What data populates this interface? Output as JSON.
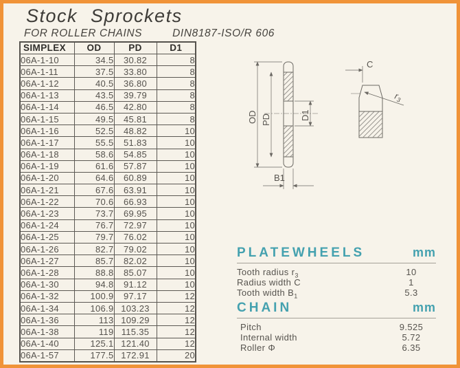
{
  "page": {
    "title": "Stock Sprockets",
    "subtitle_chains": "FOR ROLLER CHAINS",
    "subtitle_standard": "DIN8187-ISO/R 606"
  },
  "table": {
    "headers": [
      "SIMPLEX",
      "OD",
      "PD",
      "D1"
    ],
    "rows": [
      [
        "06A-1-10",
        "34.5",
        "30.82",
        "8"
      ],
      [
        "06A-1-11",
        "37.5",
        "33.80",
        "8"
      ],
      [
        "06A-1-12",
        "40.5",
        "36.80",
        "8"
      ],
      [
        "06A-1-13",
        "43.5",
        "39.79",
        "8"
      ],
      [
        "06A-1-14",
        "46.5",
        "42.80",
        "8"
      ],
      [
        "06A-1-15",
        "49.5",
        "45.81",
        "8"
      ],
      [
        "06A-1-16",
        "52.5",
        "48.82",
        "10"
      ],
      [
        "06A-1-17",
        "55.5",
        "51.83",
        "10"
      ],
      [
        "06A-1-18",
        "58.6",
        "54.85",
        "10"
      ],
      [
        "06A-1-19",
        "61.6",
        "57.87",
        "10"
      ],
      [
        "06A-1-20",
        "64.6",
        "60.89",
        "10"
      ],
      [
        "06A-1-21",
        "67.6",
        "63.91",
        "10"
      ],
      [
        "06A-1-22",
        "70.6",
        "66.93",
        "10"
      ],
      [
        "06A-1-23",
        "73.7",
        "69.95",
        "10"
      ],
      [
        "06A-1-24",
        "76.7",
        "72.97",
        "10"
      ],
      [
        "06A-1-25",
        "79.7",
        "76.02",
        "10"
      ],
      [
        "06A-1-26",
        "82.7",
        "79.02",
        "10"
      ],
      [
        "06A-1-27",
        "85.7",
        "82.02",
        "10"
      ],
      [
        "06A-1-28",
        "88.8",
        "85.07",
        "10"
      ],
      [
        "06A-1-30",
        "94.8",
        "91.12",
        "10"
      ],
      [
        "06A-1-32",
        "100.9",
        "97.17",
        "12"
      ],
      [
        "06A-1-34",
        "106.9",
        "103.23",
        "12"
      ],
      [
        "06A-1-36",
        "113",
        "109.29",
        "12"
      ],
      [
        "06A-1-38",
        "119",
        "115.35",
        "12"
      ],
      [
        "06A-1-40",
        "125.1",
        "121.40",
        "12"
      ],
      [
        "06A-1-57",
        "177.5",
        "172.91",
        "20"
      ]
    ]
  },
  "drawing": {
    "od": "OD",
    "pd": "PD",
    "d1": "D1",
    "b1": "B1",
    "c": "C",
    "r_main": "r",
    "r_sub": "3"
  },
  "platewheels": {
    "heading": "PLATEWHEELS",
    "unit": "mm",
    "rows": [
      {
        "label": "Tooth radius r",
        "sub": "3",
        "value": "10"
      },
      {
        "label": "Radius width C",
        "sub": "",
        "value": "1"
      },
      {
        "label": "Tooth width B",
        "sub": "1",
        "value": "5.3"
      }
    ]
  },
  "chain": {
    "heading": "CHAIN",
    "unit": "mm",
    "rows": [
      {
        "label": "Pitch",
        "sub": "",
        "value": "9.525"
      },
      {
        "label": "Internal width",
        "sub": "",
        "value": "5.72"
      },
      {
        "label": "Roller Φ",
        "sub": "",
        "value": "6.35"
      }
    ]
  },
  "colors": {
    "accent_border": "#f09338",
    "heading_teal": "#44a1af"
  }
}
